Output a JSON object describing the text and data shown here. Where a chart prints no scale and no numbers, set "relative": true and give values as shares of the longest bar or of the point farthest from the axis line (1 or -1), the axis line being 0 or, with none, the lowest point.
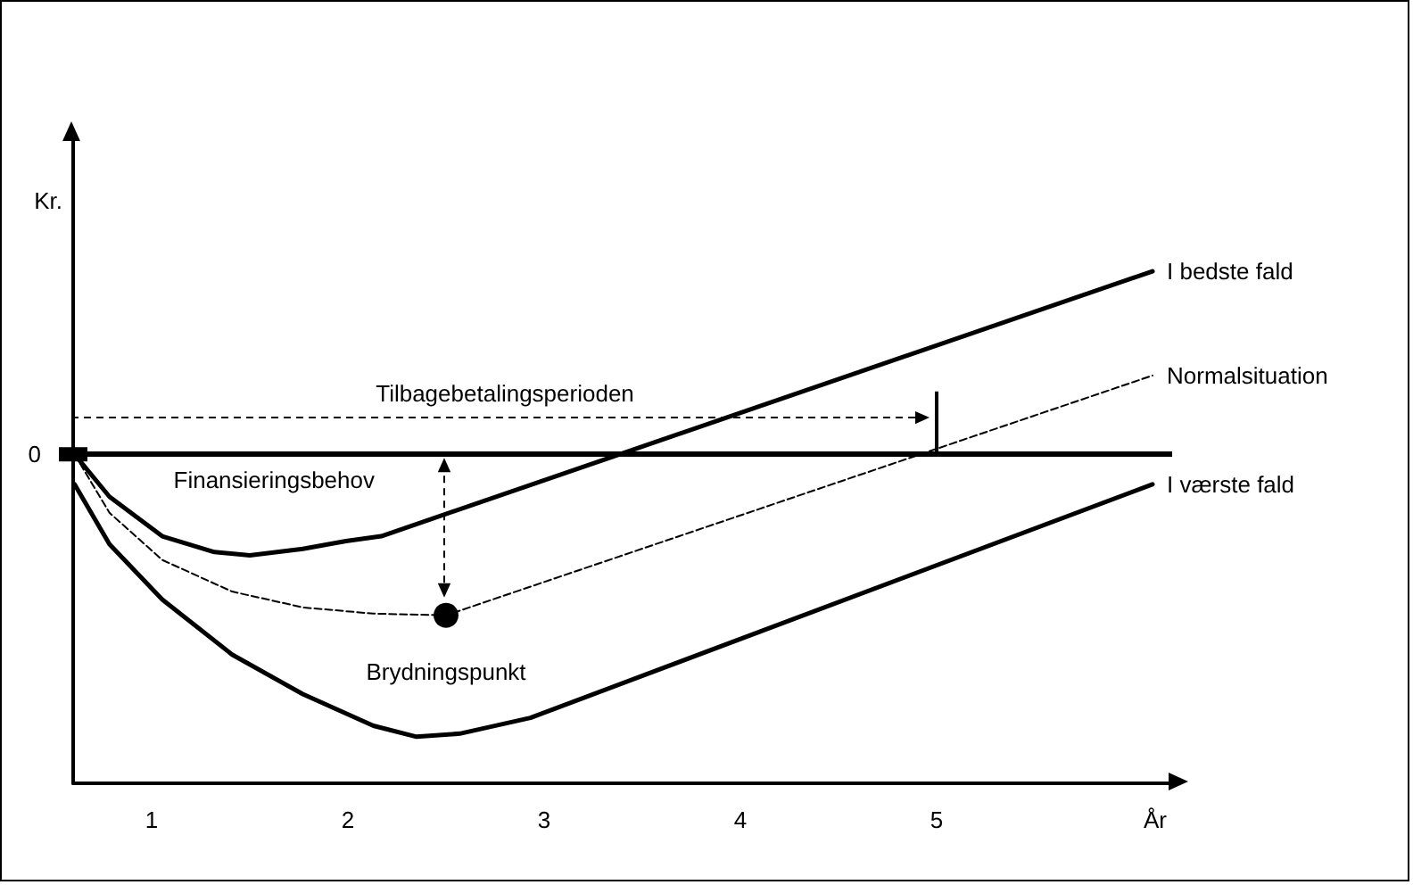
{
  "chart_data": {
    "type": "line",
    "relative": true,
    "xlabel": "År",
    "ylabel": "Kr.",
    "xlim": [
      0.6,
      6.2
    ],
    "xticks": [
      1,
      2,
      3,
      4,
      5
    ],
    "legend": false,
    "grid": false,
    "marker": "none",
    "series": [
      {
        "name": "I bedste fald",
        "color": "#000000",
        "x": [
          0.607,
          0.785,
          1.054,
          1.32,
          1.5,
          1.77,
          1.99,
          2.17,
          6.1
        ],
        "values": [
          0,
          -0.15,
          -0.29,
          -0.346,
          -0.358,
          -0.335,
          -0.307,
          -0.29,
          0.648
        ]
      },
      {
        "name": "Normalsituation",
        "color": "#000000",
        "line_style": "dashed",
        "x": [
          0.607,
          0.785,
          1.054,
          1.41,
          1.77,
          2.13,
          2.5,
          6.1
        ],
        "values": [
          0,
          -0.207,
          -0.374,
          -0.486,
          -0.542,
          -0.564,
          -0.57,
          0.279
        ]
      },
      {
        "name": "I værste fald",
        "color": "#000000",
        "x": [
          0.607,
          0.785,
          1.054,
          1.41,
          1.77,
          2.13,
          2.35,
          2.57,
          2.93,
          6.1
        ],
        "values": [
          -0.106,
          -0.318,
          -0.514,
          -0.709,
          -0.849,
          -0.961,
          -1,
          -0.989,
          -0.933,
          -0.106
        ]
      }
    ],
    "ref_lines": [
      {
        "axis": "y",
        "value": 0,
        "label": "0",
        "color": "#000000"
      },
      {
        "axis": "x",
        "value": 5,
        "color": "#000000"
      }
    ],
    "annotations": [
      "Tilbagebetalingsperioden",
      "Finansieringsbehov",
      {
        "text": "Brydningspunkt",
        "x": 2.5,
        "y": -0.57
      }
    ]
  }
}
